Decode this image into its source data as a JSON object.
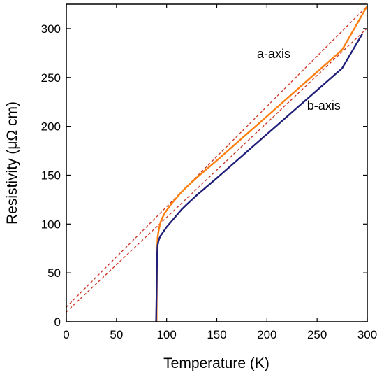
{
  "chart_data": {
    "type": "line",
    "xlabel": "Temperature (K)",
    "ylabel": "Resistivity (μΩ cm)",
    "xlim": [
      0,
      300
    ],
    "ylim": [
      0,
      325
    ],
    "xticks": [
      0,
      50,
      100,
      150,
      200,
      250,
      300
    ],
    "yticks": [
      0,
      50,
      100,
      150,
      200,
      250,
      300
    ],
    "grid": false,
    "legend": "none",
    "series": [
      {
        "name": "a-axis",
        "color": "#ff7f0e",
        "x": [
          90,
          90.3,
          90.7,
          91,
          92,
          93,
          94,
          96,
          98,
          100,
          105,
          110,
          115,
          120,
          130,
          150,
          175,
          200,
          225,
          250,
          275,
          300
        ],
        "y": [
          0,
          50,
          78,
          86,
          93,
          98,
          102,
          107,
          111,
          114,
          121,
          127,
          133,
          138,
          147.5,
          165,
          187.7,
          210.3,
          233,
          255.7,
          278.3,
          323.2
        ]
      },
      {
        "name": "b-axis",
        "color": "#1f1f7a",
        "x": [
          89.5,
          90,
          90.3,
          90.6,
          91,
          92,
          93,
          94,
          96,
          98,
          100,
          105,
          110,
          115,
          120,
          130,
          150,
          175,
          200,
          225,
          250,
          275,
          295
        ],
        "y": [
          0,
          30,
          55,
          70,
          78,
          83,
          86,
          88,
          91,
          94,
          97,
          103,
          109,
          115,
          120,
          129.5,
          147,
          169.5,
          192,
          214.5,
          237,
          259.5,
          294.5
        ]
      }
    ],
    "fits": [
      {
        "color": "#cc3322",
        "style": "dashed",
        "x": [
          0,
          300
        ],
        "y": [
          15,
          323.2
        ]
      },
      {
        "color": "#cc3322",
        "style": "dashed",
        "x": [
          0,
          300
        ],
        "y": [
          10,
          300.5
        ]
      }
    ],
    "annotations": [
      {
        "text": "a-axis",
        "x": 190,
        "y": 270
      },
      {
        "text": "b-axis",
        "x": 240,
        "y": 217
      }
    ]
  }
}
